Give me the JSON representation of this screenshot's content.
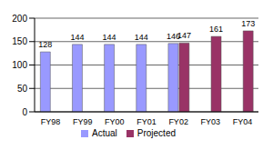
{
  "chart_data": {
    "type": "bar",
    "categories": [
      "FY98",
      "FY99",
      "FY00",
      "FY01",
      "FY02",
      "FY03",
      "FY04"
    ],
    "series": [
      {
        "name": "Actual",
        "color": "#9999ff",
        "values": [
          128,
          144,
          144,
          144,
          146,
          null,
          null
        ]
      },
      {
        "name": "Projected",
        "color": "#993366",
        "values": [
          null,
          null,
          null,
          null,
          147,
          161,
          173
        ]
      }
    ],
    "ylim": [
      0,
      200
    ],
    "yticks": [
      0,
      50,
      100,
      150,
      200
    ],
    "grid": true,
    "legend": "bottom",
    "data_labels": true
  }
}
